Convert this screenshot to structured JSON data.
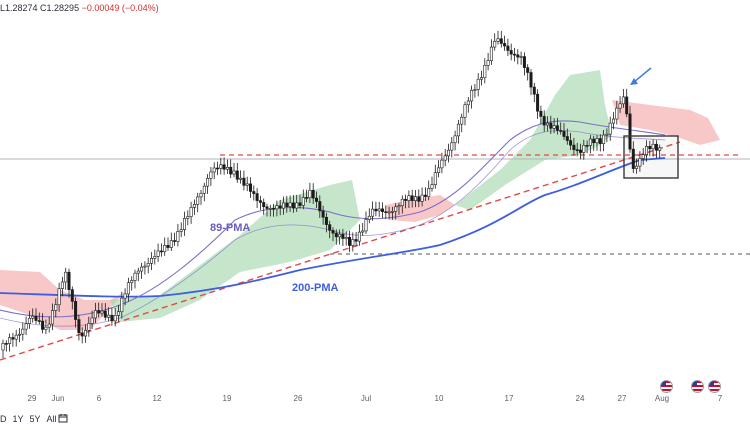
{
  "header": {
    "ohlc_text": "L1.28274  C1.28295",
    "change_text": "−0.00049 (−0.04%)"
  },
  "annotations": {
    "pma89_label": "89-PMA",
    "pma200_label": "200-PMA"
  },
  "time_axis": {
    "labels": [
      "29",
      "Jun",
      "6",
      "12",
      "19",
      "26",
      "Jul",
      "10",
      "17",
      "24",
      "27",
      "Aug",
      "7"
    ]
  },
  "range_bar": {
    "items": [
      "D",
      "1Y",
      "5Y",
      "All"
    ]
  },
  "colors": {
    "bull_candle": "#1b1b1b",
    "bear_candle": "#1b1b1b",
    "pma89": "#7a6fc9",
    "pma200": "#3d5ee0",
    "cloud_bull": "#9ed6a6",
    "cloud_bear": "#f4a3a3",
    "trendline": "#e04a4a",
    "arrow": "#3d7bd9"
  },
  "icons": {
    "range_icon": "calendar-range-icon",
    "flags": [
      "us-flag-icon",
      "us-flag-icon",
      "us-flag-icon"
    ]
  }
}
